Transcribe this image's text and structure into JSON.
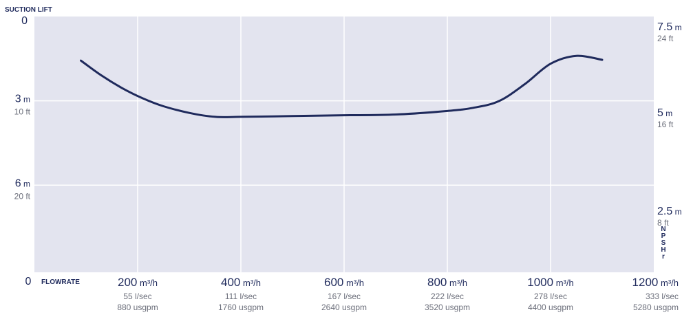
{
  "chart_data": {
    "type": "line",
    "y_title": "SUCTION LIFT",
    "x_title": "FLOWRATE",
    "right_title": "NPSHr",
    "x_ticks": [
      {
        "value": 0,
        "label": "0",
        "unit": "",
        "l_sec": "",
        "usgpm": ""
      },
      {
        "value": 200,
        "label": "200",
        "unit": "m³/h",
        "l_sec": "55 l/sec",
        "usgpm": "880 usgpm"
      },
      {
        "value": 400,
        "label": "400",
        "unit": "m³/h",
        "l_sec": "111 l/sec",
        "usgpm": "1760 usgpm"
      },
      {
        "value": 600,
        "label": "600",
        "unit": "m³/h",
        "l_sec": "167 l/sec",
        "usgpm": "2640 usgpm"
      },
      {
        "value": 800,
        "label": "800",
        "unit": "m³/h",
        "l_sec": "222 l/sec",
        "usgpm": "3520 usgpm"
      },
      {
        "value": 1000,
        "label": "1000",
        "unit": "m³/h",
        "l_sec": "278 l/sec",
        "usgpm": "4400 usgpm"
      },
      {
        "value": 1200,
        "label": "1200",
        "unit": "m³/h",
        "l_sec": "333 l/sec",
        "usgpm": "5280 usgpm"
      }
    ],
    "left_ticks": [
      {
        "value": 0,
        "label": "0",
        "unit": "",
        "sub": ""
      },
      {
        "value": 3,
        "label": "3",
        "unit": "m",
        "sub": "10 ft"
      },
      {
        "value": 6,
        "label": "6",
        "unit": "m",
        "sub": "20 ft"
      }
    ],
    "right_ticks": [
      {
        "value": 7.5,
        "label": "7.5",
        "unit": "m",
        "sub": "24 ft"
      },
      {
        "value": 5,
        "label": "5",
        "unit": "m",
        "sub": "16 ft"
      },
      {
        "value": 2.5,
        "label": "2.5",
        "unit": "m",
        "sub": "8 ft"
      }
    ],
    "xlim": [
      0,
      1200
    ],
    "ylim_left": [
      0,
      9.1
    ],
    "ylim_right": [
      1.0,
      7.5
    ],
    "grid": true,
    "series": [
      {
        "axis": "right",
        "x": [
          90,
          130,
          170,
          210,
          250,
          300,
          350,
          400,
          500,
          600,
          700,
          800,
          850,
          900,
          950,
          1000,
          1050,
          1100
        ],
        "y": [
          6.38,
          6.0,
          5.68,
          5.42,
          5.22,
          5.05,
          4.95,
          4.95,
          4.97,
          4.99,
          5.01,
          5.1,
          5.18,
          5.35,
          5.78,
          6.3,
          6.5,
          6.4
        ]
      }
    ],
    "colors": {
      "plot_bg": "#e3e4ef",
      "grid": "#ffffff",
      "line": "#1f2a5c"
    }
  }
}
